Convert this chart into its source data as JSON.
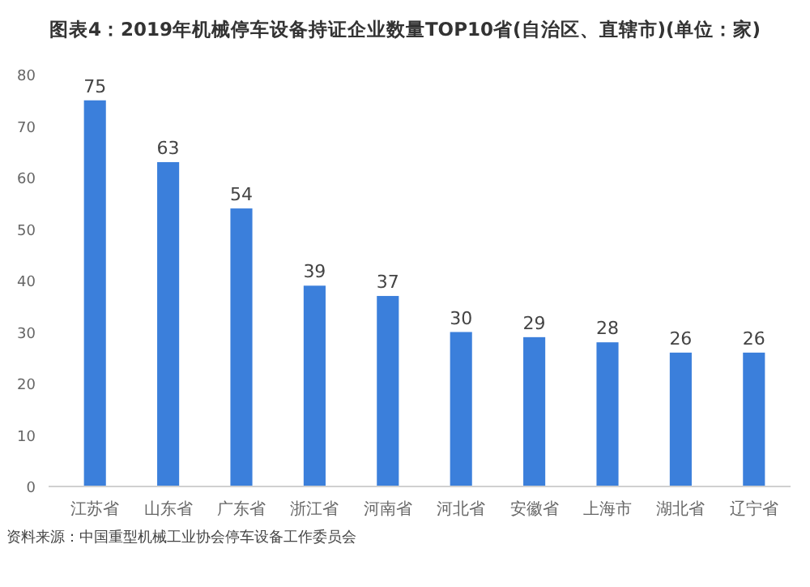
{
  "chart_data": {
    "type": "bar",
    "title": "图表4：2019年机械停车设备持证企业数量TOP10省(自治区、直辖市)(单位：家)",
    "categories": [
      "江苏省",
      "山东省",
      "广东省",
      "浙江省",
      "河南省",
      "河北省",
      "安徽省",
      "上海市",
      "湖北省",
      "辽宁省"
    ],
    "values": [
      75,
      63,
      54,
      39,
      37,
      30,
      29,
      28,
      26,
      26
    ],
    "color": "#3b7fdb",
    "ylim": [
      0,
      80
    ],
    "yticks": [
      0,
      10,
      20,
      30,
      40,
      50,
      60,
      70,
      80
    ],
    "grid": false,
    "data_labels": true,
    "annotations": [
      "资料来源：中国重型机械工业协会停车设备工作委员会"
    ]
  }
}
